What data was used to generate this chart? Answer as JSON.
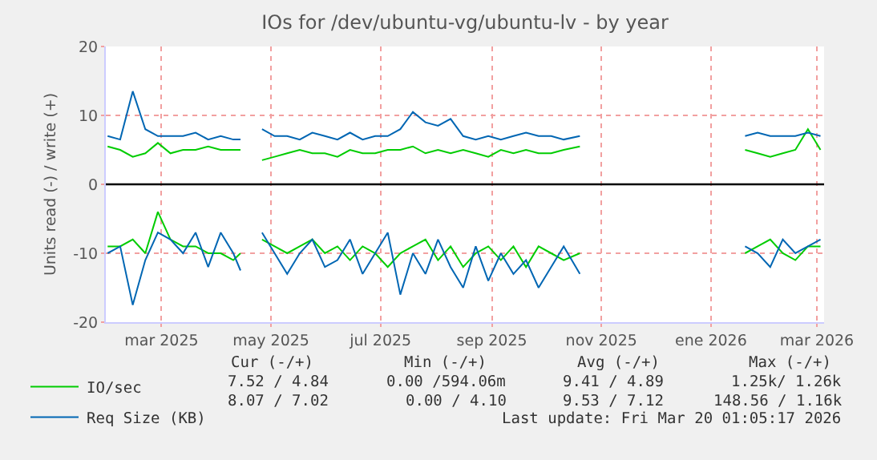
{
  "chart_data": {
    "type": "line",
    "title": "IOs for /dev/ubuntu-vg/ubuntu-lv - by year",
    "ylabel": "Units read (-) / write (+)",
    "x": [
      "2025-01-30",
      "2025-02-06",
      "2025-02-13",
      "2025-02-20",
      "2025-02-27",
      "2025-03-06",
      "2025-03-13",
      "2025-03-20",
      "2025-03-27",
      "2025-04-03",
      "2025-04-10",
      "2025-04-14",
      "2025-04-20",
      "2025-04-26",
      "2025-05-03",
      "2025-05-10",
      "2025-05-17",
      "2025-05-24",
      "2025-05-31",
      "2025-06-07",
      "2025-06-14",
      "2025-06-21",
      "2025-06-28",
      "2025-07-05",
      "2025-07-12",
      "2025-07-19",
      "2025-07-26",
      "2025-08-02",
      "2025-08-09",
      "2025-08-16",
      "2025-08-23",
      "2025-08-30",
      "2025-09-06",
      "2025-09-13",
      "2025-09-20",
      "2025-09-27",
      "2025-10-04",
      "2025-10-11",
      "2025-10-20",
      "2025-12-01",
      "2026-01-20",
      "2026-01-27",
      "2026-02-03",
      "2026-02-10",
      "2026-02-17",
      "2026-02-24",
      "2026-03-03"
    ],
    "series": [
      {
        "name": "IO/sec",
        "color": "#00cc00",
        "values": [
          5.5,
          5,
          4,
          4.5,
          6,
          4.5,
          5,
          5,
          5.5,
          5,
          5,
          5,
          null,
          3.5,
          4,
          4.5,
          5,
          4.5,
          4.5,
          4,
          5,
          4.5,
          4.5,
          5,
          5,
          5.5,
          4.5,
          5,
          4.5,
          5,
          4.5,
          4,
          5,
          4.5,
          5,
          4.5,
          4.5,
          5,
          5.5,
          null,
          5,
          4.5,
          4,
          4.5,
          5,
          8,
          5
        ]
      },
      {
        "name": "Req Size (KB)",
        "color": "#0066b3",
        "values": [
          7,
          6.5,
          13.5,
          8,
          7,
          7,
          7,
          7.5,
          6.5,
          7,
          6.5,
          6.5,
          null,
          8,
          7,
          7,
          6.5,
          7.5,
          7,
          6.5,
          7.5,
          6.5,
          7,
          7,
          8,
          10.5,
          9,
          8.5,
          9.5,
          7,
          6.5,
          7,
          6.5,
          7,
          7.5,
          7,
          7,
          6.5,
          7,
          null,
          7,
          7.5,
          7,
          7,
          7,
          7.5,
          7
        ]
      },
      {
        "color": "#00cc00",
        "values": [
          -9,
          -9,
          -8,
          -10,
          -4,
          -8,
          -9,
          -9,
          -10,
          -10,
          -11,
          -10,
          null,
          -8,
          -9,
          -10,
          -9,
          -8,
          -10,
          -9,
          -11,
          -9,
          -10,
          -12,
          -10,
          -9,
          -8,
          -11,
          -9,
          -12,
          -10,
          -9,
          -11,
          -9,
          -12,
          -9,
          -10,
          -11,
          -10,
          null,
          -10,
          -9,
          -8,
          -10,
          -11,
          -9,
          -9
        ]
      },
      {
        "color": "#0066b3",
        "values": [
          -10,
          -9,
          -17.5,
          -11,
          -7,
          -8,
          -10,
          -7,
          -12,
          -7,
          -10,
          -12.5,
          null,
          -7,
          -10,
          -13,
          -10,
          -8,
          -12,
          -11,
          -8,
          -13,
          -10,
          -7,
          -16,
          -10,
          -13,
          -8,
          -12,
          -15,
          -9,
          -14,
          -10,
          -13,
          -11,
          -15,
          -12,
          -9,
          -13,
          null,
          -9,
          -10,
          -12,
          -8,
          -10,
          -9,
          -8
        ]
      }
    ],
    "xlim": [
      "2025-01-29",
      "2026-03-05"
    ],
    "xticks": [
      {
        "value": "2025-03-01",
        "label": "mar 2025"
      },
      {
        "value": "2025-05-01",
        "label": "may 2025"
      },
      {
        "value": "2025-07-01",
        "label": "jul 2025"
      },
      {
        "value": "2025-09-01",
        "label": "sep 2025"
      },
      {
        "value": "2025-11-01",
        "label": "nov 2025"
      },
      {
        "value": "2026-01-01",
        "label": "ene 2026"
      },
      {
        "value": "2026-03-01",
        "label": "mar 2026"
      }
    ],
    "ylim": [
      -20,
      20
    ],
    "yticks": [
      -20,
      -10,
      0,
      10,
      20
    ],
    "grid": true,
    "legend": "bottom left",
    "ref_lines": [
      {
        "axis": "y",
        "value": 0,
        "color": "#000000"
      }
    ],
    "annotations": [
      "Cur (-/+)",
      "Min (-/+)",
      "Avg (-/+)",
      "Max (-/+)",
      "7.52 / 4.84",
      "0.00 /594.06m",
      "9.41 / 4.89",
      "1.25k/ 1.26k",
      "8.07 / 7.02",
      "0.00 / 4.10",
      "9.53 / 7.12",
      "148.56 / 1.16k",
      "Last update: Fri Mar 20 01:05:17 2026"
    ]
  }
}
